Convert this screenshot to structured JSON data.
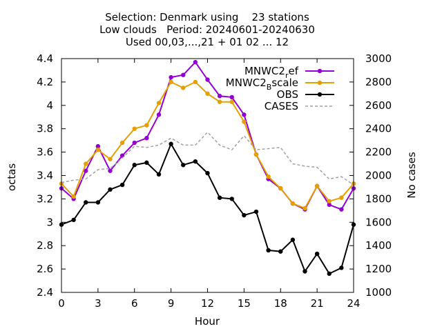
{
  "title_lines": [
    "Selection: Denmark using    23 stations",
    "Low clouds   Period: 20240601-20240630",
    "Used 00,03,...,21 + 01 02 ... 12"
  ],
  "chart_data": {
    "type": "line",
    "xlabel": "Hour",
    "ylabel": "octas",
    "y2label": "No cases",
    "xlim": [
      0,
      24
    ],
    "ylim": [
      2.4,
      4.4
    ],
    "y2lim": [
      1000,
      3000
    ],
    "xticks": [
      0,
      3,
      6,
      9,
      12,
      15,
      18,
      21,
      24
    ],
    "yticks": [
      2.4,
      2.6,
      2.8,
      3,
      3.2,
      3.4,
      3.6,
      3.8,
      4,
      4.2,
      4.4
    ],
    "y2ticks": [
      1000,
      1200,
      1400,
      1600,
      1800,
      2000,
      2200,
      2400,
      2600,
      2800,
      3000
    ],
    "x": [
      0,
      1,
      2,
      3,
      4,
      5,
      6,
      7,
      8,
      9,
      10,
      11,
      12,
      13,
      14,
      15,
      16,
      17,
      18,
      19,
      20,
      21,
      22,
      23,
      24
    ],
    "legend_position": "top-right",
    "series": [
      {
        "name": "MNWC2_ref",
        "label_main": "MNWC2",
        "label_sub": "r",
        "label_rest": "ef",
        "color": "#9400d3",
        "marker": "circle",
        "axis": "left",
        "values": [
          3.29,
          3.2,
          3.44,
          3.65,
          3.44,
          3.57,
          3.68,
          3.72,
          3.92,
          4.24,
          4.26,
          4.37,
          4.22,
          4.08,
          4.07,
          3.92,
          3.58,
          3.37,
          3.29,
          3.16,
          3.11,
          3.31,
          3.15,
          3.11,
          3.29
        ]
      },
      {
        "name": "MNWC2_Bscale",
        "label_main": "MNWC2",
        "label_sub": "B",
        "label_rest": "scale",
        "color": "#e69f00",
        "marker": "circle",
        "axis": "left",
        "values": [
          3.33,
          3.22,
          3.5,
          3.62,
          3.54,
          3.68,
          3.8,
          3.83,
          4.02,
          4.2,
          4.15,
          4.2,
          4.1,
          4.03,
          4.03,
          3.86,
          3.58,
          3.39,
          3.29,
          3.16,
          3.12,
          3.31,
          3.18,
          3.21,
          3.33
        ]
      },
      {
        "name": "OBS",
        "label_main": "OBS",
        "color": "#000000",
        "marker": "circle",
        "axis": "left",
        "values": [
          2.98,
          3.02,
          3.17,
          3.17,
          3.28,
          3.32,
          3.49,
          3.51,
          3.41,
          3.67,
          3.49,
          3.52,
          3.42,
          3.21,
          3.2,
          3.06,
          3.09,
          2.76,
          2.75,
          2.85,
          2.58,
          2.73,
          2.56,
          2.61,
          2.98
        ]
      },
      {
        "name": "CASES",
        "label_main": "CASES",
        "color": "#a0a0a0",
        "marker": "none",
        "dashed": true,
        "axis": "right",
        "values": [
          1940,
          1960,
          1970,
          2050,
          2060,
          2150,
          2250,
          2240,
          2260,
          2320,
          2260,
          2260,
          2370,
          2260,
          2220,
          2340,
          2220,
          2230,
          2240,
          2100,
          2080,
          2070,
          1970,
          1990,
          1920
        ]
      }
    ]
  }
}
